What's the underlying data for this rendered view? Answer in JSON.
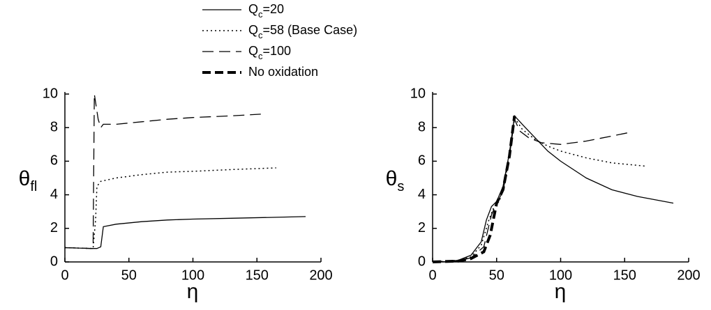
{
  "chart_data": [
    {
      "type": "line",
      "ylabel": "θfl",
      "xlabel": "η",
      "xlim": [
        0,
        200
      ],
      "xticks": [
        0,
        50,
        100,
        150,
        200
      ],
      "ylim": [
        0,
        10
      ],
      "yticks": [
        0,
        2,
        4,
        6,
        8,
        10
      ],
      "series": [
        {
          "color": "#000000",
          "linestyle": "solid",
          "x": [
            0,
            20,
            25,
            28,
            30,
            40,
            60,
            80,
            100,
            130,
            160,
            188
          ],
          "values": [
            0.85,
            0.8,
            0.8,
            0.9,
            2.1,
            2.25,
            2.4,
            2.5,
            2.55,
            2.6,
            2.65,
            2.7
          ]
        },
        {
          "color": "#000000",
          "linestyle": "dotted",
          "x": [
            0,
            22,
            24,
            25,
            28,
            40,
            60,
            80,
            100,
            130,
            165
          ],
          "values": [
            0.85,
            0.8,
            2.5,
            4.5,
            4.8,
            5.0,
            5.2,
            5.35,
            5.4,
            5.5,
            5.6
          ]
        },
        {
          "color": "#000000",
          "linestyle": "dashed",
          "x": [
            0,
            22,
            23,
            26,
            28,
            30,
            40,
            60,
            80,
            100,
            130,
            153
          ],
          "values": [
            0.85,
            0.8,
            10,
            8.5,
            8.0,
            8.2,
            8.2,
            8.35,
            8.5,
            8.6,
            8.7,
            8.8
          ]
        }
      ]
    },
    {
      "type": "line",
      "ylabel": "θs",
      "xlabel": "η",
      "xlim": [
        0,
        200
      ],
      "xticks": [
        0,
        50,
        100,
        150,
        200
      ],
      "ylim": [
        0,
        10
      ],
      "yticks": [
        0,
        2,
        4,
        6,
        8,
        10
      ],
      "series": [
        {
          "name": "Qc=20",
          "color": "#000000",
          "linestyle": "solid",
          "x": [
            0,
            10,
            20,
            30,
            38,
            42,
            46,
            50,
            55,
            60,
            64,
            70,
            80,
            90,
            100,
            120,
            140,
            160,
            188
          ],
          "values": [
            0,
            0.02,
            0.1,
            0.4,
            1.2,
            2.5,
            3.3,
            3.6,
            4.5,
            6.5,
            8.7,
            8.2,
            7.4,
            6.6,
            6.0,
            5.0,
            4.3,
            3.9,
            3.5
          ]
        },
        {
          "name": "Qc=58 (Base Case)",
          "color": "#000000",
          "linestyle": "dotted",
          "x": [
            0,
            20,
            30,
            38,
            44,
            48,
            52,
            56,
            60,
            64,
            70,
            80,
            90,
            100,
            120,
            140,
            167
          ],
          "values": [
            0,
            0.1,
            0.3,
            1.0,
            2.5,
            3.3,
            3.6,
            4.5,
            6.5,
            8.6,
            7.9,
            7.3,
            6.9,
            6.6,
            6.2,
            5.9,
            5.7
          ]
        },
        {
          "name": "Qc=100",
          "color": "#000000",
          "linestyle": "dashed",
          "x": [
            0,
            20,
            30,
            40,
            46,
            50,
            55,
            60,
            64,
            68,
            75,
            85,
            100,
            120,
            140,
            153
          ],
          "values": [
            0,
            0.05,
            0.25,
            0.9,
            2.8,
            3.5,
            4.2,
            6.3,
            8.5,
            7.8,
            7.4,
            7.1,
            7.0,
            7.2,
            7.5,
            7.7
          ]
        },
        {
          "name": "No oxidation",
          "color": "#000000",
          "linestyle": "thick-dashed",
          "x": [
            0,
            20,
            30,
            40,
            45,
            50,
            55,
            60,
            64
          ],
          "values": [
            0,
            0.05,
            0.2,
            0.6,
            1.6,
            3.5,
            4.3,
            6.3,
            8.7
          ]
        }
      ]
    }
  ]
}
